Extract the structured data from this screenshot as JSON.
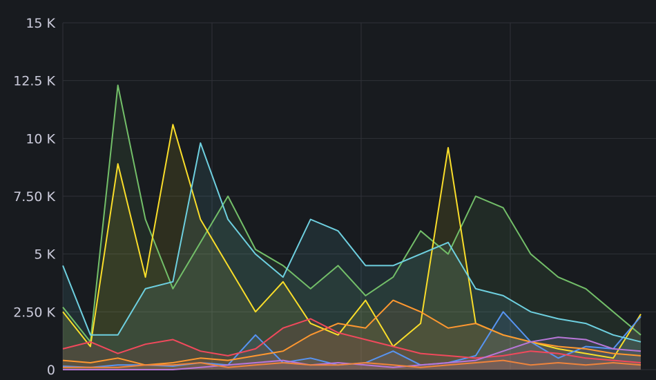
{
  "chart_data": {
    "type": "line",
    "fill": "area",
    "ylim": [
      0,
      15000
    ],
    "y_ticks": [
      {
        "value": 0,
        "label": "0"
      },
      {
        "value": 2500,
        "label": "2.50 K"
      },
      {
        "value": 5000,
        "label": "5 K"
      },
      {
        "value": 7500,
        "label": "7.50 K"
      },
      {
        "value": 10000,
        "label": "10 K"
      },
      {
        "value": 12500,
        "label": "12.5 K"
      },
      {
        "value": 15000,
        "label": "15 K"
      }
    ],
    "x_points": 22,
    "x_gridlines": 3,
    "grid": true,
    "legend": "none",
    "series": [
      {
        "color": "#73bf69",
        "values": [
          2700,
          1200,
          12300,
          6500,
          3500,
          5500,
          7500,
          5200,
          4500,
          3500,
          4500,
          3200,
          4000,
          6000,
          5000,
          7500,
          7000,
          5000,
          4000,
          3500,
          2500,
          1500
        ]
      },
      {
        "color": "#fade2a",
        "values": [
          2500,
          1000,
          8900,
          4000,
          10600,
          6500,
          4500,
          2500,
          3800,
          2000,
          1500,
          3000,
          1000,
          2000,
          9600,
          2000,
          1500,
          1200,
          900,
          700,
          500,
          2400
        ]
      },
      {
        "color": "#5794f2",
        "values": [
          150,
          100,
          200,
          200,
          150,
          300,
          200,
          1500,
          300,
          500,
          200,
          300,
          800,
          200,
          300,
          600,
          2500,
          1200,
          500,
          1000,
          900,
          2300
        ]
      },
      {
        "color": "#ff9830",
        "values": [
          400,
          300,
          500,
          200,
          300,
          500,
          400,
          600,
          800,
          1500,
          2000,
          1800,
          3000,
          2500,
          1800,
          2000,
          1500,
          1200,
          1000,
          900,
          700,
          600
        ]
      },
      {
        "color": "#f2495c",
        "values": [
          900,
          1200,
          700,
          1100,
          1300,
          800,
          600,
          900,
          1800,
          2200,
          1600,
          1300,
          1000,
          700,
          600,
          500,
          600,
          800,
          700,
          500,
          400,
          300
        ]
      },
      {
        "color": "#b877d9",
        "values": [
          0,
          0,
          0,
          0,
          0,
          100,
          200,
          300,
          400,
          200,
          300,
          200,
          100,
          200,
          300,
          400,
          800,
          1200,
          1400,
          1300,
          900,
          800
        ]
      },
      {
        "color": "#6ed0e0",
        "values": [
          4500,
          1500,
          1500,
          3500,
          3800,
          9800,
          6500,
          5000,
          4000,
          6500,
          6000,
          4500,
          4500,
          5000,
          5500,
          3500,
          3200,
          2500,
          2200,
          2000,
          1500,
          1200
        ]
      },
      {
        "color": "#ef843c",
        "values": [
          100,
          100,
          100,
          200,
          200,
          300,
          100,
          200,
          300,
          200,
          200,
          300,
          200,
          100,
          200,
          300,
          400,
          200,
          300,
          200,
          300,
          200
        ]
      }
    ]
  }
}
